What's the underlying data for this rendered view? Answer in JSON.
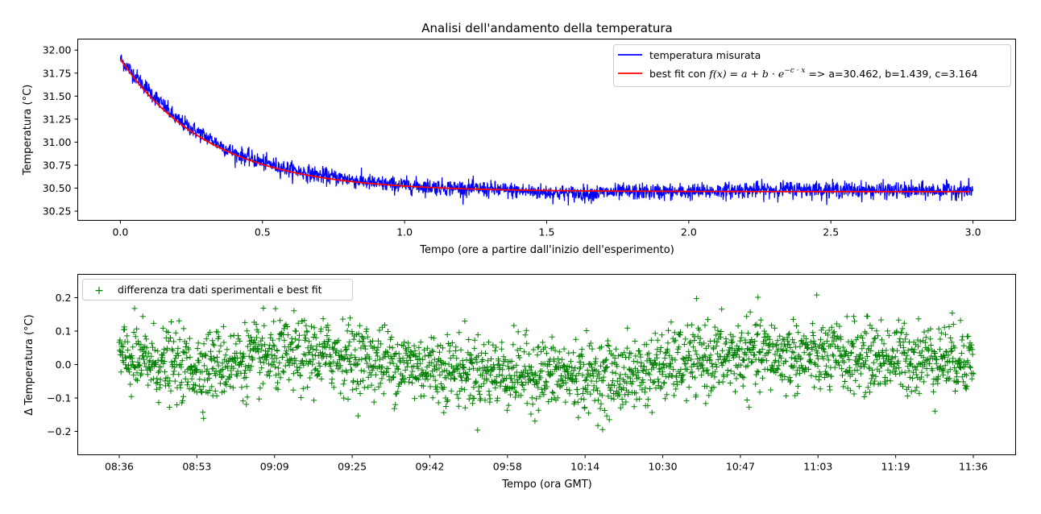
{
  "chart_data": [
    {
      "type": "line",
      "title": "Analisi dell'andamento della temperatura",
      "xlabel": "Tempo (ore a partire dall'inizio dell'esperimento)",
      "ylabel": "Temperatura (°C)",
      "xlim": [
        -0.15,
        3.15
      ],
      "ylim": [
        30.15,
        32.12
      ],
      "xticks": [
        0.0,
        0.5,
        1.0,
        1.5,
        2.0,
        2.5,
        3.0
      ],
      "xtick_labels": [
        "0.0",
        "0.5",
        "1.0",
        "1.5",
        "2.0",
        "2.5",
        "3.0"
      ],
      "yticks": [
        30.25,
        30.5,
        30.75,
        31.0,
        31.25,
        31.5,
        31.75,
        32.0
      ],
      "ytick_labels": [
        "30.25",
        "30.50",
        "30.75",
        "31.00",
        "31.25",
        "31.50",
        "31.75",
        "32.00"
      ],
      "grid": false,
      "legend_position": "top-right",
      "legend": [
        {
          "label": "temperatura misurata",
          "color": "#0000ff"
        },
        {
          "label_prefix": "best fit con ",
          "label_math": "f(x) = a + b · e",
          "label_superscript": "−c · x",
          "label_suffix": " => a=30.462, b=1.439, c=3.164",
          "color": "#ff0000"
        }
      ],
      "series": [
        {
          "name": "temperatura misurata",
          "color": "#0000ff",
          "x": [
            0.0,
            0.1,
            0.2,
            0.3,
            0.4,
            0.5,
            0.6,
            0.7,
            0.8,
            0.9,
            1.0,
            1.2,
            1.4,
            1.6,
            1.8,
            2.0,
            2.2,
            2.4,
            2.6,
            2.8,
            3.0
          ],
          "y": [
            31.9,
            31.56,
            31.24,
            31.06,
            30.88,
            30.78,
            30.7,
            30.64,
            30.6,
            30.55,
            30.53,
            30.5,
            30.47,
            30.44,
            30.46,
            30.46,
            30.48,
            30.49,
            30.48,
            30.47,
            30.48
          ]
        },
        {
          "name": "best fit",
          "color": "#ff0000",
          "fit": {
            "a": 30.462,
            "b": 1.439,
            "c": 3.164
          },
          "x_range": [
            0.0,
            2.99
          ]
        }
      ]
    },
    {
      "type": "scatter",
      "xlabel": "Tempo (ora GMT)",
      "ylabel": "Δ Temperatura (°C)",
      "ylim": [
        -0.27,
        0.27
      ],
      "xticks": [
        "08:36",
        "08:53",
        "09:09",
        "09:25",
        "09:42",
        "09:58",
        "10:14",
        "10:30",
        "10:47",
        "11:03",
        "11:19",
        "11:36"
      ],
      "yticks": [
        -0.2,
        -0.1,
        0.0,
        0.1,
        0.2
      ],
      "ytick_labels": [
        "−0.2",
        "−0.1",
        "0.0",
        "0.1",
        "0.2"
      ],
      "grid": false,
      "legend_position": "top-left",
      "legend": [
        {
          "label": "differenza tra dati sperimentali e best fit",
          "color": "#008000",
          "marker": "+"
        }
      ],
      "series": [
        {
          "name": "differenza tra dati sperimentali e best fit",
          "color": "#008000",
          "marker": "+",
          "x_hours": [
            0.0,
            0.25,
            0.5,
            0.75,
            1.0,
            1.25,
            1.5,
            1.75,
            2.0,
            2.25,
            2.5,
            2.75,
            3.0
          ],
          "y": [
            0.02,
            -0.01,
            0.02,
            0.03,
            0.0,
            -0.02,
            -0.03,
            -0.04,
            0.01,
            0.03,
            0.02,
            0.02,
            0.02
          ]
        }
      ]
    }
  ]
}
